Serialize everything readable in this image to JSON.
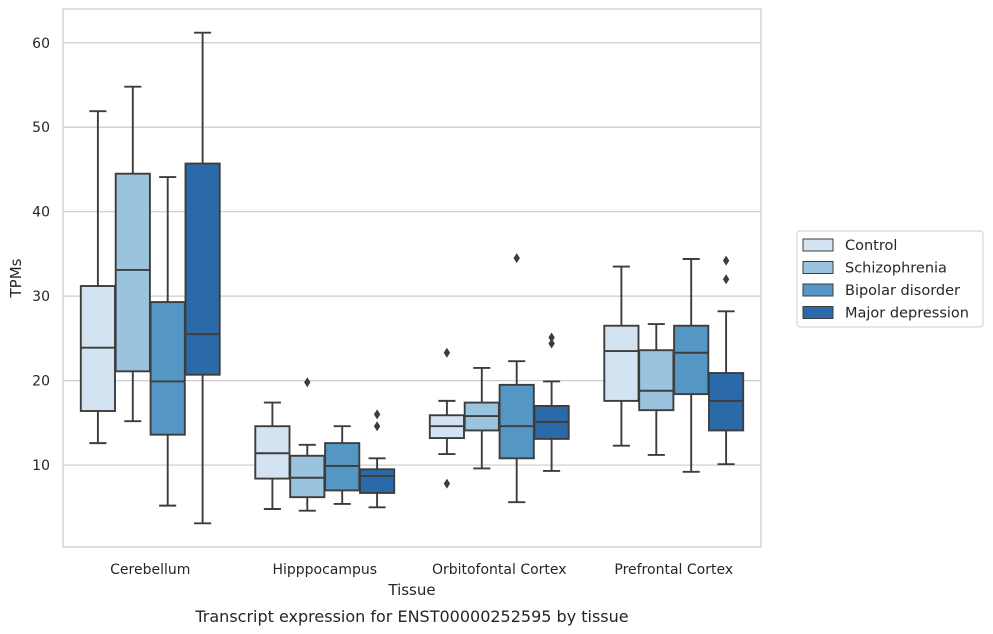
{
  "caption": "Transcript expression for ENST00000252595 by tissue",
  "chart_data": {
    "type": "box",
    "title": "",
    "xlabel": "Tissue",
    "ylabel": "TPMs",
    "ylim": [
      0.3,
      64
    ],
    "yticks": [
      10,
      20,
      30,
      40,
      50,
      60
    ],
    "grid": "horizontal",
    "legend_position": "right",
    "categories": [
      "Cerebellum",
      "Hipppocampus",
      "Orbitofontal Cortex",
      "Prefrontal Cortex"
    ],
    "series": [
      {
        "name": "Control",
        "color": "#d4e3f2",
        "boxes": [
          {
            "whislo": 12.6,
            "q1": 16.4,
            "median": 23.9,
            "q3": 31.2,
            "whishi": 51.9,
            "fliers": []
          },
          {
            "whislo": 4.8,
            "q1": 8.4,
            "median": 11.4,
            "q3": 14.6,
            "whishi": 17.4,
            "fliers": []
          },
          {
            "whislo": 11.3,
            "q1": 13.2,
            "median": 14.6,
            "q3": 15.9,
            "whishi": 17.6,
            "fliers": [
              7.8,
              23.3
            ]
          },
          {
            "whislo": 12.3,
            "q1": 17.6,
            "median": 23.5,
            "q3": 26.5,
            "whishi": 33.5,
            "fliers": []
          }
        ]
      },
      {
        "name": "Schizophrenia",
        "color": "#9ac4de",
        "boxes": [
          {
            "whislo": 15.2,
            "q1": 21.1,
            "median": 33.1,
            "q3": 44.5,
            "whishi": 54.8,
            "fliers": []
          },
          {
            "whislo": 4.6,
            "q1": 6.2,
            "median": 8.5,
            "q3": 11.1,
            "whishi": 12.4,
            "fliers": [
              19.8
            ]
          },
          {
            "whislo": 9.6,
            "q1": 14.1,
            "median": 15.8,
            "q3": 17.4,
            "whishi": 21.5,
            "fliers": []
          },
          {
            "whislo": 11.2,
            "q1": 16.5,
            "median": 18.8,
            "q3": 23.6,
            "whishi": 26.7,
            "fliers": []
          }
        ]
      },
      {
        "name": "Bipolar disorder",
        "color": "#5597c4",
        "boxes": [
          {
            "whislo": 5.2,
            "q1": 13.6,
            "median": 19.9,
            "q3": 29.3,
            "whishi": 44.1,
            "fliers": []
          },
          {
            "whislo": 5.4,
            "q1": 7.0,
            "median": 9.9,
            "q3": 12.6,
            "whishi": 14.6,
            "fliers": []
          },
          {
            "whislo": 5.6,
            "q1": 10.8,
            "median": 14.6,
            "q3": 19.5,
            "whishi": 22.3,
            "fliers": [
              34.5
            ]
          },
          {
            "whislo": 9.2,
            "q1": 18.4,
            "median": 23.3,
            "q3": 26.5,
            "whishi": 34.4,
            "fliers": []
          }
        ]
      },
      {
        "name": "Major depression",
        "color": "#2b6aa8",
        "boxes": [
          {
            "whislo": 3.1,
            "q1": 20.7,
            "median": 25.5,
            "q3": 45.7,
            "whishi": 61.2,
            "fliers": []
          },
          {
            "whislo": 5.0,
            "q1": 6.7,
            "median": 8.7,
            "q3": 9.5,
            "whishi": 10.8,
            "fliers": [
              14.6,
              16.0
            ]
          },
          {
            "whislo": 9.3,
            "q1": 13.1,
            "median": 15.1,
            "q3": 17.0,
            "whishi": 19.9,
            "fliers": [
              24.4,
              25.1
            ]
          },
          {
            "whislo": 10.1,
            "q1": 14.1,
            "median": 17.6,
            "q3": 20.9,
            "whishi": 28.2,
            "fliers": [
              32.0,
              34.2
            ]
          }
        ]
      }
    ]
  }
}
